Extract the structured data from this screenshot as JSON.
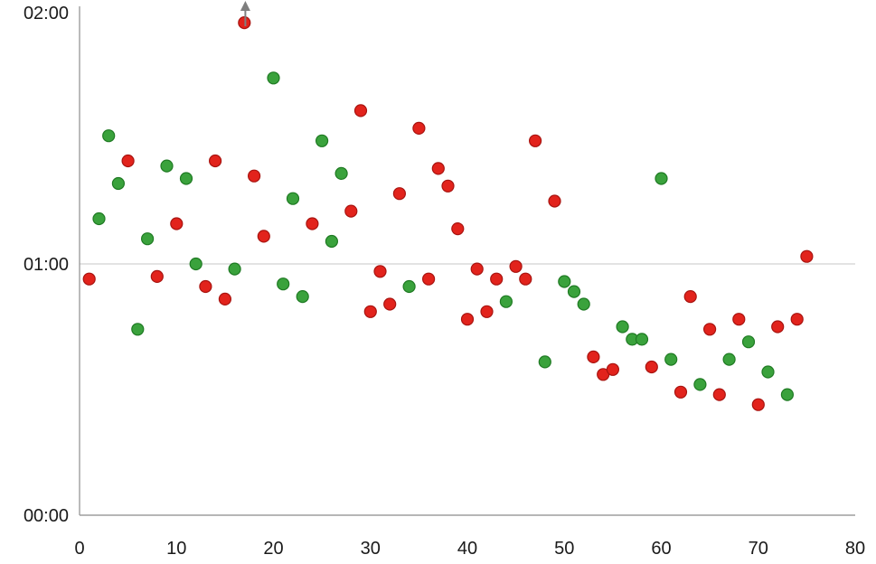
{
  "chart_data": {
    "type": "scatter",
    "title": "",
    "xlabel": "",
    "ylabel": "",
    "xlim": [
      0,
      80
    ],
    "ylim_hours": [
      0,
      2
    ],
    "x_ticks": [
      0,
      10,
      20,
      30,
      40,
      50,
      60,
      70,
      80
    ],
    "y_ticks": [
      {
        "hours": 0,
        "label": "00:00"
      },
      {
        "hours": 1,
        "label": "01:00"
      },
      {
        "hours": 2,
        "label": "02:00"
      }
    ],
    "gridlines_hours": [
      1
    ],
    "grid": true,
    "legend_position": "none",
    "y_format": "h:mm",
    "annotation": {
      "type": "up-arrow",
      "x": 17.1,
      "meaning": "value continues above top of axis"
    },
    "colors": {
      "red_fill": "#e2231c",
      "red_stroke": "#a81410",
      "green_fill": "#3aa23c",
      "green_stroke": "#1f7a23",
      "gridline": "#d2d2d2",
      "axis": "#9e9e9e",
      "label": "#1a1a1a",
      "arrow": "#7f7f7f"
    },
    "series": [
      {
        "name": "red-series",
        "color": "#e2231c",
        "stroke": "#a81410",
        "points": [
          [
            1,
            0.94
          ],
          [
            5,
            1.41
          ],
          [
            8,
            0.95
          ],
          [
            10,
            1.16
          ],
          [
            13,
            0.91
          ],
          [
            14,
            1.41
          ],
          [
            15,
            0.86
          ],
          [
            17,
            1.96
          ],
          [
            18,
            1.35
          ],
          [
            19,
            1.11
          ],
          [
            24,
            1.16
          ],
          [
            28,
            1.21
          ],
          [
            29,
            1.61
          ],
          [
            30,
            0.81
          ],
          [
            31,
            0.97
          ],
          [
            32,
            0.84
          ],
          [
            33,
            1.28
          ],
          [
            35,
            1.54
          ],
          [
            36,
            0.94
          ],
          [
            37,
            1.38
          ],
          [
            38,
            1.31
          ],
          [
            39,
            1.14
          ],
          [
            40,
            0.78
          ],
          [
            41,
            0.98
          ],
          [
            42,
            0.81
          ],
          [
            43,
            0.94
          ],
          [
            45,
            0.99
          ],
          [
            46,
            0.94
          ],
          [
            47,
            1.49
          ],
          [
            49,
            1.25
          ],
          [
            53,
            0.63
          ],
          [
            54,
            0.56
          ],
          [
            55,
            0.58
          ],
          [
            59,
            0.59
          ],
          [
            62,
            0.49
          ],
          [
            63,
            0.87
          ],
          [
            65,
            0.74
          ],
          [
            66,
            0.48
          ],
          [
            68,
            0.78
          ],
          [
            70,
            0.44
          ],
          [
            72,
            0.75
          ],
          [
            74,
            0.78
          ],
          [
            75,
            1.03
          ]
        ]
      },
      {
        "name": "green-series",
        "color": "#3aa23c",
        "stroke": "#1f7a23",
        "points": [
          [
            2,
            1.18
          ],
          [
            3,
            1.51
          ],
          [
            4,
            1.32
          ],
          [
            6,
            0.74
          ],
          [
            7,
            1.1
          ],
          [
            9,
            1.39
          ],
          [
            11,
            1.34
          ],
          [
            12,
            1.0
          ],
          [
            16,
            0.98
          ],
          [
            20,
            1.74
          ],
          [
            21,
            0.92
          ],
          [
            22,
            1.26
          ],
          [
            23,
            0.87
          ],
          [
            25,
            1.49
          ],
          [
            26,
            1.09
          ],
          [
            27,
            1.36
          ],
          [
            34,
            0.91
          ],
          [
            44,
            0.85
          ],
          [
            48,
            0.61
          ],
          [
            50,
            0.93
          ],
          [
            51,
            0.89
          ],
          [
            52,
            0.84
          ],
          [
            56,
            0.75
          ],
          [
            57,
            0.7
          ],
          [
            58,
            0.7
          ],
          [
            60,
            1.34
          ],
          [
            61,
            0.62
          ],
          [
            64,
            0.52
          ],
          [
            67,
            0.62
          ],
          [
            69,
            0.69
          ],
          [
            71,
            0.57
          ],
          [
            73,
            0.48
          ]
        ]
      }
    ]
  }
}
